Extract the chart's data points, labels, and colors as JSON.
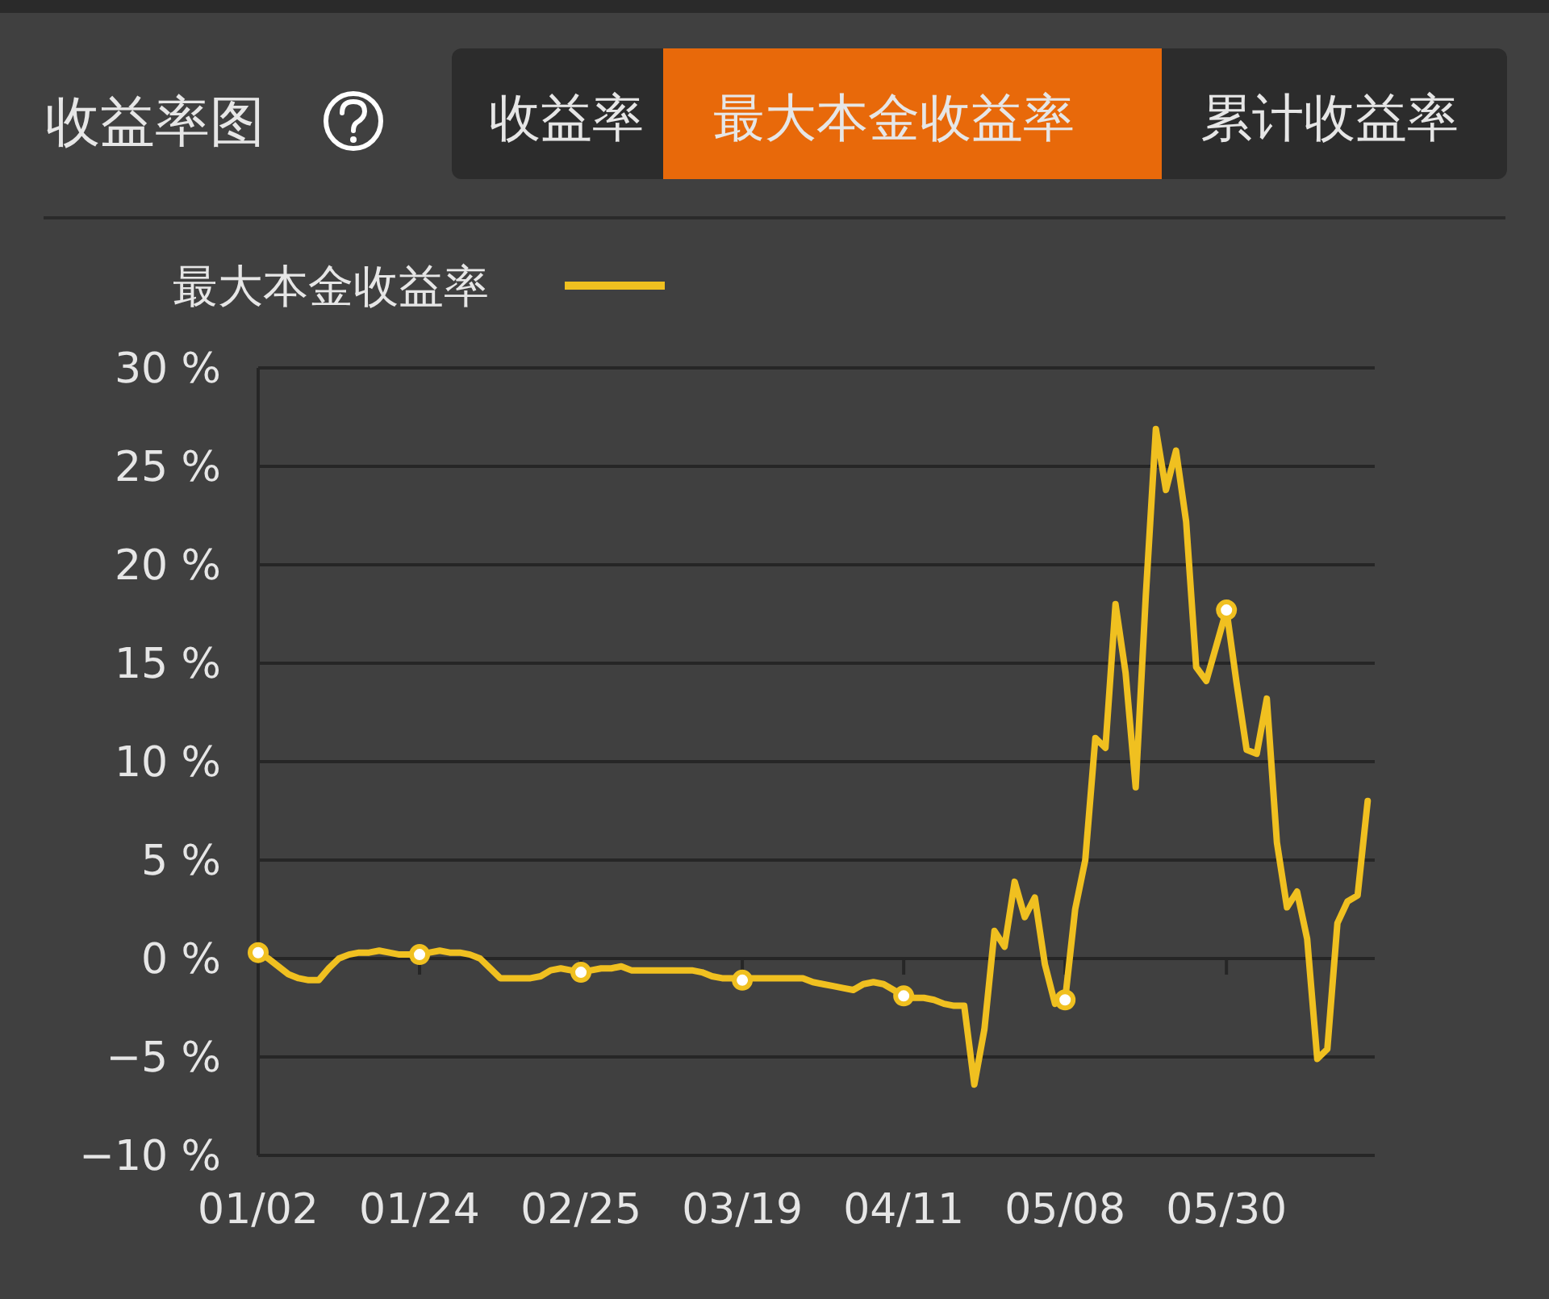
{
  "chart_data": {
    "type": "line",
    "title": "收益率图",
    "annotations": [
      "收益率",
      "最大本金收益率",
      "累计收益率"
    ],
    "categories": [
      "01/02",
      null,
      null,
      null,
      null,
      null,
      null,
      null,
      null,
      null,
      null,
      null,
      null,
      null,
      null,
      null,
      "01/24",
      null,
      null,
      null,
      null,
      null,
      null,
      null,
      null,
      null,
      null,
      null,
      null,
      null,
      null,
      null,
      "02/25",
      null,
      null,
      null,
      null,
      null,
      null,
      null,
      null,
      null,
      null,
      null,
      null,
      null,
      null,
      null,
      "03/19",
      null,
      null,
      null,
      null,
      null,
      null,
      null,
      null,
      null,
      null,
      null,
      null,
      null,
      null,
      null,
      "04/11",
      null,
      null,
      null,
      null,
      null,
      null,
      null,
      null,
      null,
      null,
      null,
      null,
      null,
      null,
      null,
      "05/08",
      null,
      null,
      null,
      null,
      null,
      null,
      null,
      null,
      null,
      null,
      null,
      null,
      null,
      null,
      null,
      "05/30",
      null,
      null,
      null,
      null,
      null,
      null,
      null,
      null,
      null,
      null,
      null,
      null,
      null,
      null
    ],
    "series": [
      {
        "name": "最大本金收益率",
        "color": "#f0c020",
        "values": [
          0.3,
          0.0,
          -0.4,
          -0.8,
          -1.0,
          -1.1,
          -1.1,
          -0.5,
          0.0,
          0.2,
          0.3,
          0.3,
          0.4,
          0.3,
          0.2,
          0.2,
          0.2,
          0.3,
          0.4,
          0.3,
          0.3,
          0.2,
          0.0,
          -0.5,
          -1.0,
          -1.0,
          -1.0,
          -1.0,
          -0.9,
          -0.6,
          -0.5,
          -0.6,
          -0.7,
          -0.6,
          -0.5,
          -0.5,
          -0.4,
          -0.6,
          -0.6,
          -0.6,
          -0.6,
          -0.6,
          -0.6,
          -0.6,
          -0.7,
          -0.9,
          -1.0,
          -1.0,
          -1.1,
          -1.0,
          -1.0,
          -1.0,
          -1.0,
          -1.0,
          -1.0,
          -1.2,
          -1.3,
          -1.4,
          -1.5,
          -1.6,
          -1.3,
          -1.2,
          -1.3,
          -1.6,
          -1.9,
          -2.0,
          -2.0,
          -2.1,
          -2.3,
          -2.4,
          -2.4,
          -6.4,
          -3.6,
          1.4,
          0.6,
          3.9,
          2.1,
          3.1,
          -0.3,
          -2.3,
          -2.1,
          2.5,
          5.0,
          11.2,
          10.7,
          18.0,
          14.5,
          8.7,
          18.4,
          26.9,
          23.8,
          25.8,
          22.2,
          14.8,
          14.1,
          15.9,
          17.7,
          14.0,
          10.6,
          10.4,
          13.2,
          5.9,
          2.6,
          3.4,
          1.0,
          -5.1,
          -4.6,
          1.8,
          2.9,
          3.2,
          8.0
        ]
      },
      {
        "type": "scatter",
        "marker": "circle",
        "color": "#ffffff",
        "x": [
          "01/02",
          "01/24",
          "02/25",
          "03/19",
          "04/11",
          "05/08",
          "05/30"
        ],
        "values": [
          0.3,
          0.2,
          -0.7,
          -1.1,
          -1.9,
          -2.1,
          17.7
        ]
      }
    ],
    "ylim": [
      -10,
      30
    ],
    "yticks": [
      {
        "value": -10,
        "label": "−10 %"
      },
      {
        "value": -5,
        "label": "−5 %"
      },
      {
        "value": 0,
        "label": "0 %"
      },
      {
        "value": 5,
        "label": "5 %"
      },
      {
        "value": 10,
        "label": "10 %"
      },
      {
        "value": 15,
        "label": "15 %"
      },
      {
        "value": 20,
        "label": "20 %"
      },
      {
        "value": 25,
        "label": "25 %"
      },
      {
        "value": 30,
        "label": "30 %"
      }
    ],
    "grid": "y",
    "legend": "top left",
    "line_style": "solid"
  }
}
